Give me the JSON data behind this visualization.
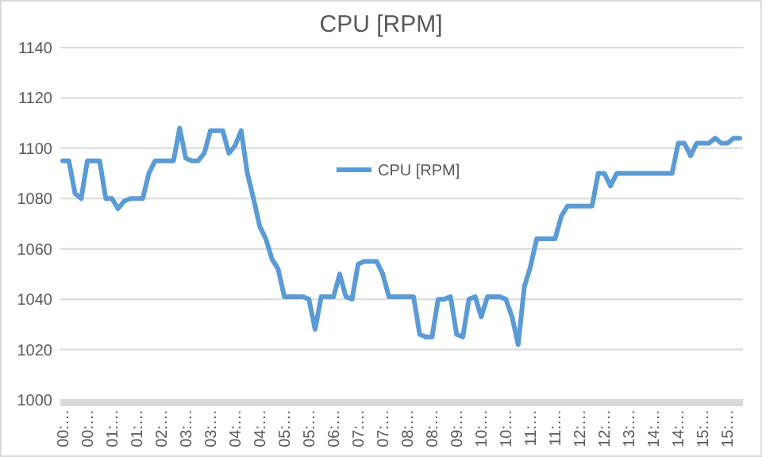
{
  "chart_data": {
    "type": "line",
    "title": "CPU [RPM]",
    "categories": [
      "00:…",
      null,
      null,
      null,
      "00:…",
      null,
      null,
      null,
      "01:…",
      null,
      null,
      null,
      "01:…",
      null,
      null,
      null,
      "02:…",
      null,
      null,
      null,
      "03:…",
      null,
      null,
      null,
      "03:…",
      null,
      null,
      null,
      "04:…",
      null,
      null,
      null,
      "04:…",
      null,
      null,
      null,
      "05:…",
      null,
      null,
      null,
      "05:…",
      null,
      null,
      null,
      "06:…",
      null,
      null,
      null,
      "07:…",
      null,
      null,
      null,
      "07:…",
      null,
      null,
      null,
      "08:…",
      null,
      null,
      null,
      "08:…",
      null,
      null,
      null,
      "09:…",
      null,
      null,
      null,
      "10:…",
      null,
      null,
      null,
      "10:…",
      null,
      null,
      null,
      "11:…",
      null,
      null,
      null,
      "11:…",
      null,
      null,
      null,
      "12:…",
      null,
      null,
      null,
      "12:…",
      null,
      null,
      null,
      "13:…",
      null,
      null,
      null,
      "14:…",
      null,
      null,
      null,
      "14:…",
      null,
      null,
      null,
      "15:…",
      null,
      null,
      null,
      "15:…",
      null,
      null
    ],
    "series": [
      {
        "name": "CPU [RPM]",
        "color": "#5b9bd5",
        "values": [
          1095,
          1095,
          1082,
          1080,
          1095,
          1095,
          1095,
          1080,
          1080,
          1076,
          1079,
          1080,
          1080,
          1080,
          1090,
          1095,
          1095,
          1095,
          1095,
          1108,
          1096,
          1095,
          1095,
          1098,
          1107,
          1107,
          1107,
          1098,
          1101,
          1107,
          1090,
          1080,
          1069,
          1064,
          1056,
          1052,
          1041,
          1041,
          1041,
          1041,
          1040,
          1028,
          1041,
          1041,
          1041,
          1050,
          1041,
          1040,
          1054,
          1055,
          1055,
          1055,
          1050,
          1041,
          1041,
          1041,
          1041,
          1041,
          1026,
          1025,
          1025,
          1040,
          1040,
          1041,
          1026,
          1025,
          1040,
          1041,
          1033,
          1041,
          1041,
          1041,
          1040,
          1033,
          1022,
          1045,
          1053,
          1064,
          1064,
          1064,
          1064,
          1073,
          1077,
          1077,
          1077,
          1077,
          1077,
          1090,
          1090,
          1085,
          1090,
          1090,
          1090,
          1090,
          1090,
          1090,
          1090,
          1090,
          1090,
          1090,
          1102,
          1102,
          1097,
          1102,
          1102,
          1102,
          1104,
          1102,
          1102,
          1104,
          1104
        ]
      }
    ],
    "ylim": [
      1000,
      1140
    ],
    "yticks": [
      1000,
      1020,
      1040,
      1060,
      1080,
      1100,
      1120,
      1140
    ],
    "grid": "y",
    "legend": "top",
    "line_style": "solid",
    "marker": "none"
  }
}
